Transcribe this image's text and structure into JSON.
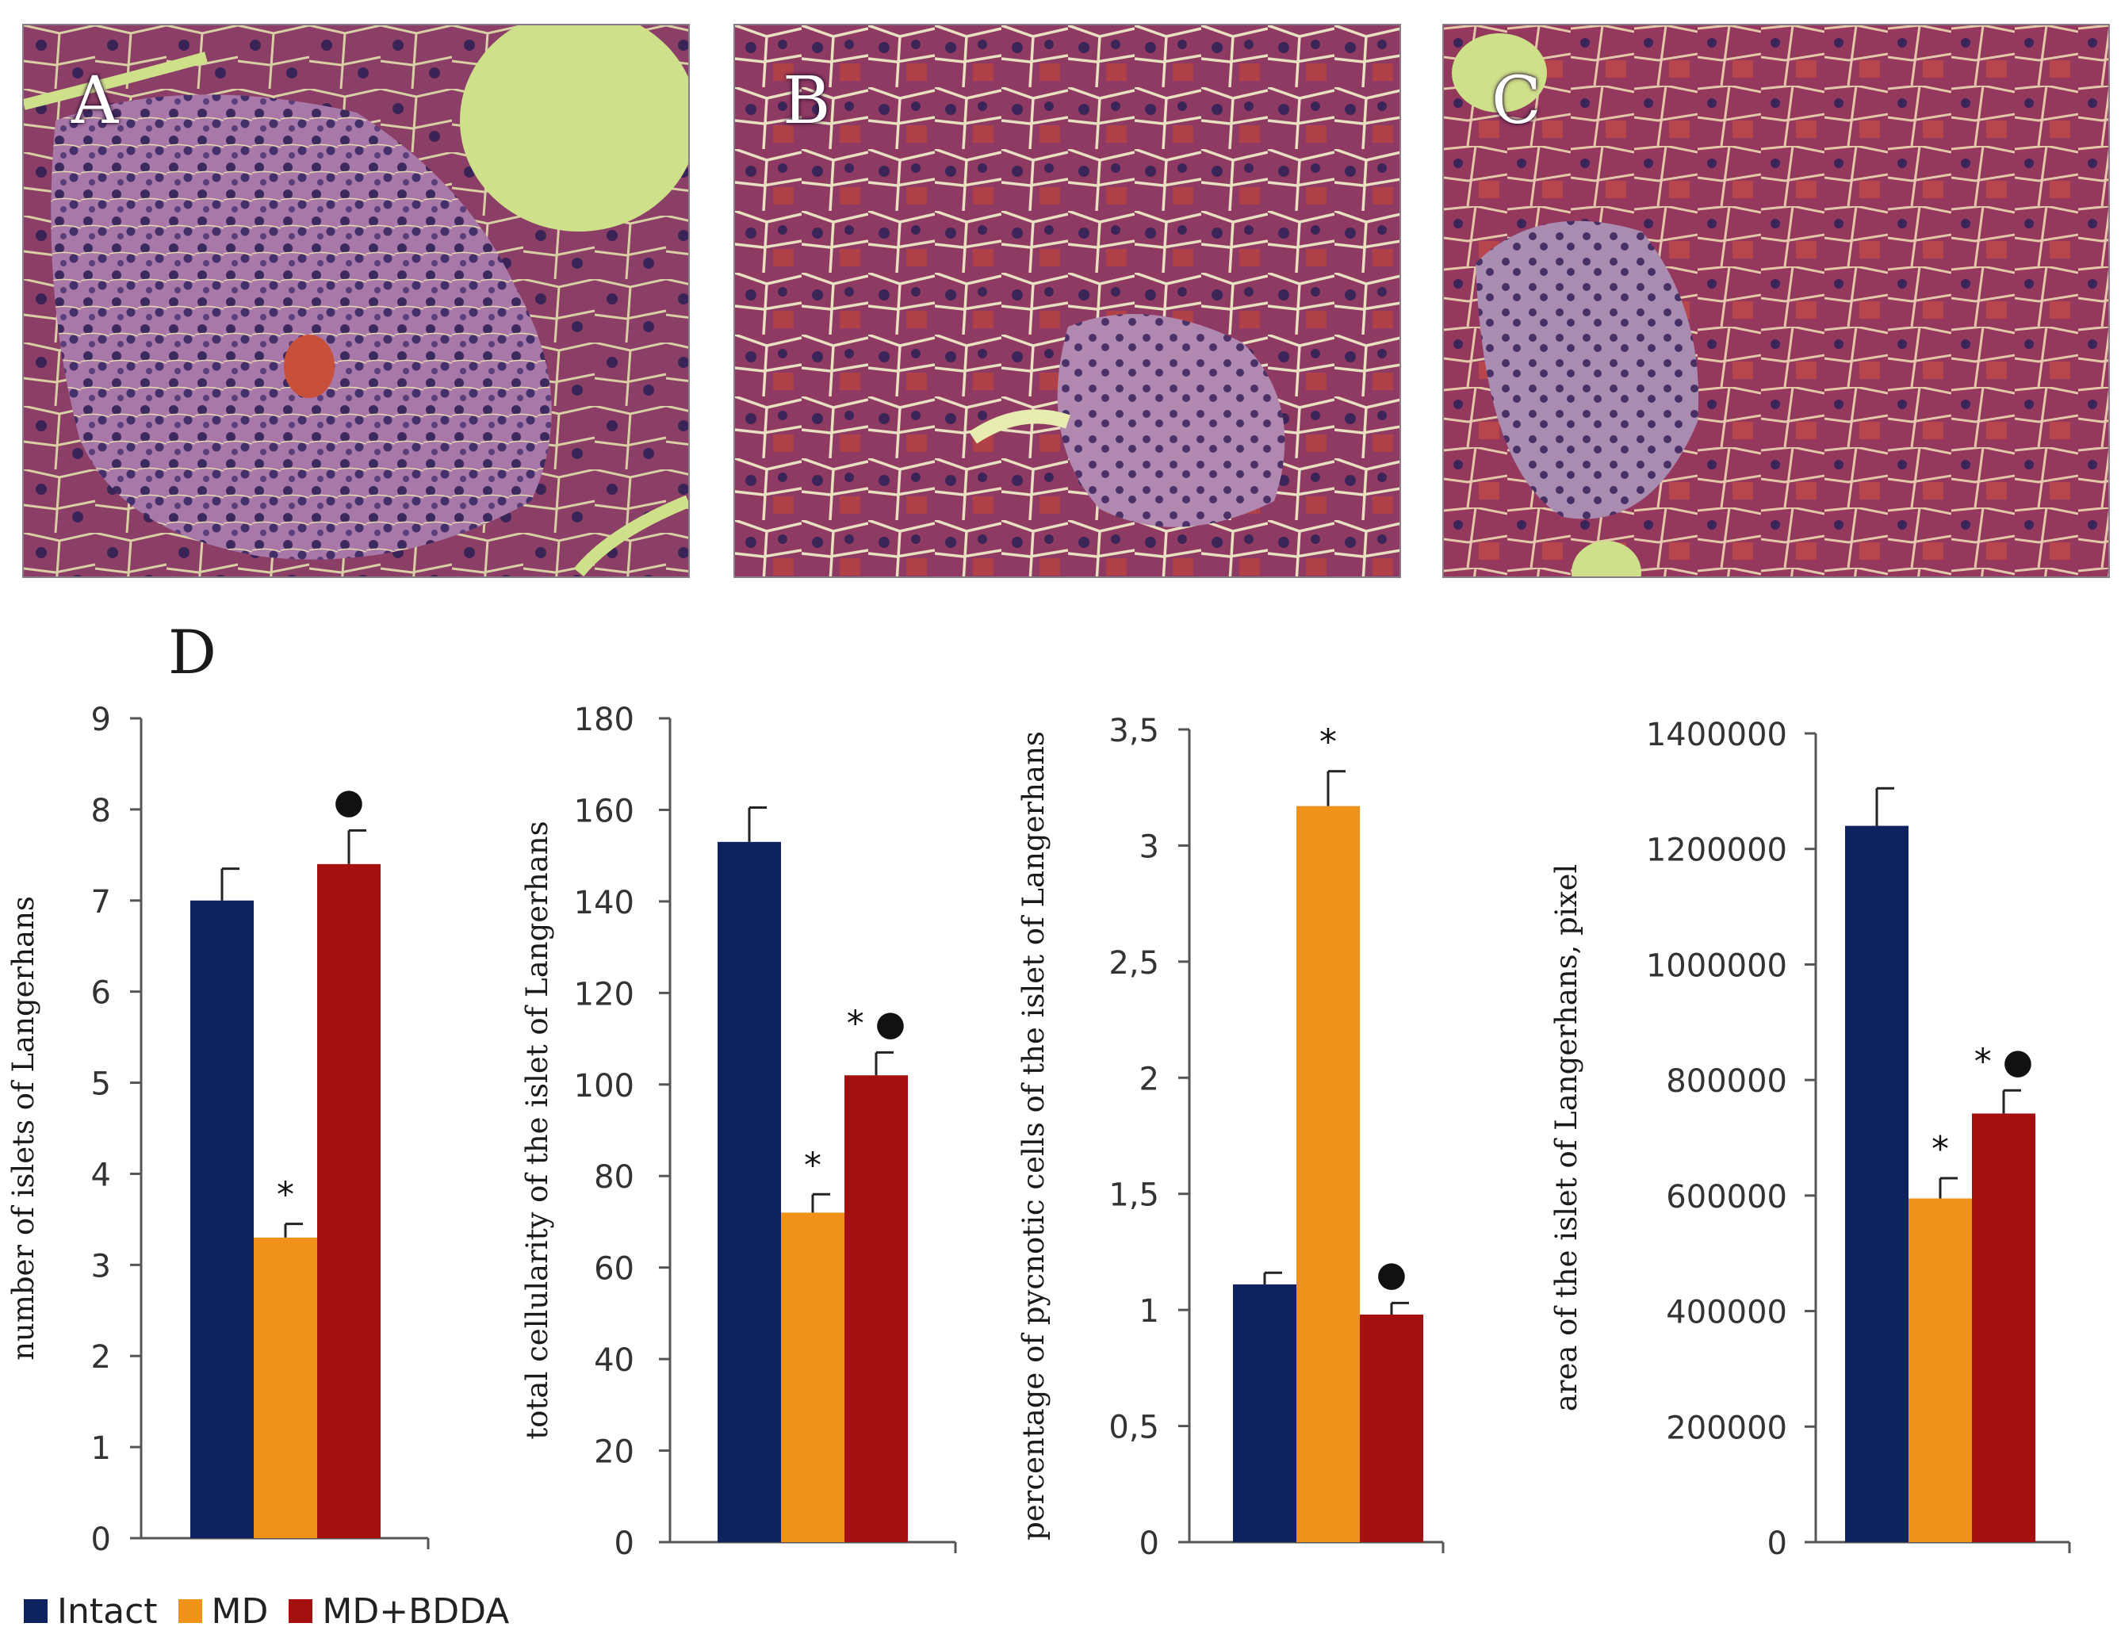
{
  "panels": {
    "a": "A",
    "b": "B",
    "c": "C",
    "d": "D"
  },
  "colors": {
    "intact": "#0e2260",
    "md": "#f0921a",
    "mdbdda": "#a50f0f",
    "axis": "#555555"
  },
  "legend": [
    {
      "label": "Intact",
      "color": "#0e2260"
    },
    {
      "label": "MD",
      "color": "#f0921a"
    },
    {
      "label": "MD+BDDA",
      "color": "#a50f0f"
    }
  ],
  "chart_data": [
    {
      "type": "bar",
      "ylabel": "number of islets of Langerhans",
      "ylim": [
        0,
        9
      ],
      "ticks": [
        "0",
        "1",
        "2",
        "3",
        "4",
        "5",
        "6",
        "7",
        "8",
        "9"
      ],
      "tick_values": [
        0,
        1,
        2,
        3,
        4,
        5,
        6,
        7,
        8,
        9
      ],
      "series": [
        {
          "name": "Intact",
          "values": [
            7.0
          ],
          "error": [
            0.35
          ],
          "mark": ""
        },
        {
          "name": "MD",
          "values": [
            3.3
          ],
          "error": [
            0.15
          ],
          "mark": "*"
        },
        {
          "name": "MD+BDDA",
          "values": [
            7.4
          ],
          "error": [
            0.37
          ],
          "mark": "●"
        }
      ]
    },
    {
      "type": "bar",
      "ylabel": "total cellularity of the islet of Langerhans",
      "ylim": [
        0,
        180
      ],
      "ticks": [
        "0",
        "20",
        "40",
        "60",
        "80",
        "100",
        "120",
        "140",
        "160",
        "180"
      ],
      "tick_values": [
        0,
        20,
        40,
        60,
        80,
        100,
        120,
        140,
        160,
        180
      ],
      "series": [
        {
          "name": "Intact",
          "values": [
            153
          ],
          "error": [
            7.5
          ],
          "mark": ""
        },
        {
          "name": "MD",
          "values": [
            72
          ],
          "error": [
            4
          ],
          "mark": "*"
        },
        {
          "name": "MD+BDDA",
          "values": [
            102
          ],
          "error": [
            5
          ],
          "mark": "* ●"
        }
      ]
    },
    {
      "type": "bar",
      "ylabel": "percentage of pycnotic cells of the islet of Langerhans",
      "ylim": [
        0,
        3.5
      ],
      "ticks": [
        "0",
        "0,5",
        "1",
        "1,5",
        "2",
        "2,5",
        "3",
        "3,5"
      ],
      "tick_values": [
        0,
        0.5,
        1,
        1.5,
        2,
        2.5,
        3,
        3.5
      ],
      "series": [
        {
          "name": "Intact",
          "values": [
            1.11
          ],
          "error": [
            0.05
          ],
          "mark": ""
        },
        {
          "name": "MD",
          "values": [
            3.17
          ],
          "error": [
            0.15
          ],
          "mark": "*"
        },
        {
          "name": "MD+BDDA",
          "values": [
            0.98
          ],
          "error": [
            0.05
          ],
          "mark": "●"
        }
      ]
    },
    {
      "type": "bar",
      "ylabel": "area of the islet of Langerhans, pixel",
      "ylim": [
        0,
        1400000
      ],
      "ticks": [
        "0",
        "200000",
        "400000",
        "600000",
        "800000",
        "1000000",
        "1200000",
        "1400000"
      ],
      "tick_values": [
        0,
        200000,
        400000,
        600000,
        800000,
        1000000,
        1200000,
        1400000
      ],
      "series": [
        {
          "name": "Intact",
          "values": [
            1240000
          ],
          "error": [
            65000
          ],
          "mark": ""
        },
        {
          "name": "MD",
          "values": [
            595000
          ],
          "error": [
            35000
          ],
          "mark": "*"
        },
        {
          "name": "MD+BDDA",
          "values": [
            742000
          ],
          "error": [
            40000
          ],
          "mark": "* ●"
        }
      ]
    }
  ]
}
